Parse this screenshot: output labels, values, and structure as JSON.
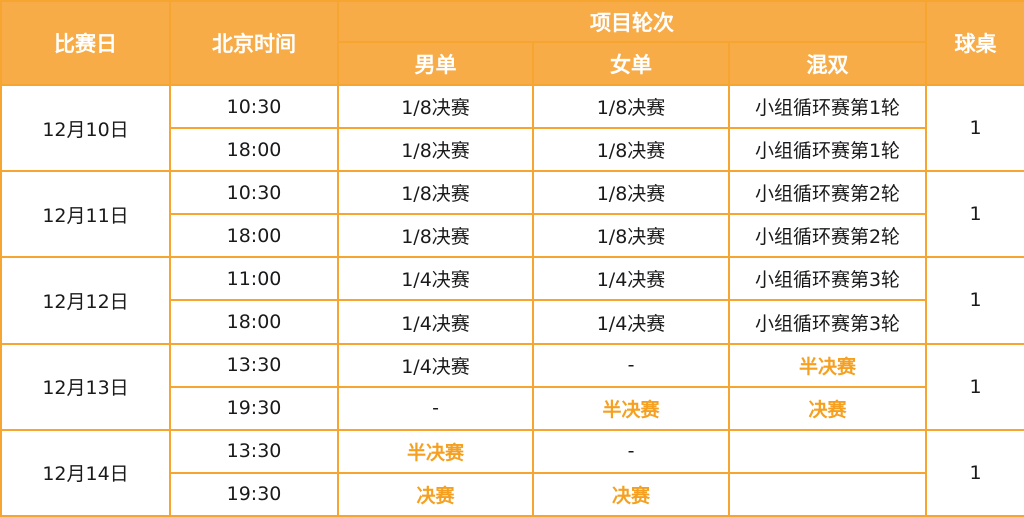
{
  "header": {
    "date": "比赛日",
    "time": "北京时间",
    "events": "项目轮次",
    "mens_singles": "男单",
    "womens_singles": "女单",
    "mixed_doubles": "混双",
    "table": "球桌"
  },
  "colors": {
    "header_bg": "#f7ac47",
    "border": "#f5a530",
    "highlight": "#f5a020"
  },
  "days": [
    {
      "date": "12月10日",
      "table": "1",
      "sessions": [
        {
          "time": "10:30",
          "mens": {
            "text": "1/8决赛",
            "highlight": false
          },
          "womens": {
            "text": "1/8决赛",
            "highlight": false
          },
          "mixed": {
            "text": "小组循环赛第1轮",
            "highlight": false
          }
        },
        {
          "time": "18:00",
          "mens": {
            "text": "1/8决赛",
            "highlight": false
          },
          "womens": {
            "text": "1/8决赛",
            "highlight": false
          },
          "mixed": {
            "text": "小组循环赛第1轮",
            "highlight": false
          }
        }
      ]
    },
    {
      "date": "12月11日",
      "table": "1",
      "sessions": [
        {
          "time": "10:30",
          "mens": {
            "text": "1/8决赛",
            "highlight": false
          },
          "womens": {
            "text": "1/8决赛",
            "highlight": false
          },
          "mixed": {
            "text": "小组循环赛第2轮",
            "highlight": false
          }
        },
        {
          "time": "18:00",
          "mens": {
            "text": "1/8决赛",
            "highlight": false
          },
          "womens": {
            "text": "1/8决赛",
            "highlight": false
          },
          "mixed": {
            "text": "小组循环赛第2轮",
            "highlight": false
          }
        }
      ]
    },
    {
      "date": "12月12日",
      "table": "1",
      "sessions": [
        {
          "time": "11:00",
          "mens": {
            "text": "1/4决赛",
            "highlight": false
          },
          "womens": {
            "text": "1/4决赛",
            "highlight": false
          },
          "mixed": {
            "text": "小组循环赛第3轮",
            "highlight": false
          }
        },
        {
          "time": "18:00",
          "mens": {
            "text": "1/4决赛",
            "highlight": false
          },
          "womens": {
            "text": "1/4决赛",
            "highlight": false
          },
          "mixed": {
            "text": "小组循环赛第3轮",
            "highlight": false
          }
        }
      ]
    },
    {
      "date": "12月13日",
      "table": "1",
      "sessions": [
        {
          "time": "13:30",
          "mens": {
            "text": "1/4决赛",
            "highlight": false
          },
          "womens": {
            "text": "-",
            "highlight": false
          },
          "mixed": {
            "text": "半决赛",
            "highlight": true
          }
        },
        {
          "time": "19:30",
          "mens": {
            "text": "-",
            "highlight": false
          },
          "womens": {
            "text": "半决赛",
            "highlight": true
          },
          "mixed": {
            "text": "决赛",
            "highlight": true
          }
        }
      ]
    },
    {
      "date": "12月14日",
      "table": "1",
      "sessions": [
        {
          "time": "13:30",
          "mens": {
            "text": "半决赛",
            "highlight": true
          },
          "womens": {
            "text": "-",
            "highlight": false
          },
          "mixed": {
            "text": "",
            "highlight": false
          }
        },
        {
          "time": "19:30",
          "mens": {
            "text": "决赛",
            "highlight": true
          },
          "womens": {
            "text": "决赛",
            "highlight": true
          },
          "mixed": {
            "text": "",
            "highlight": false
          }
        }
      ]
    }
  ]
}
